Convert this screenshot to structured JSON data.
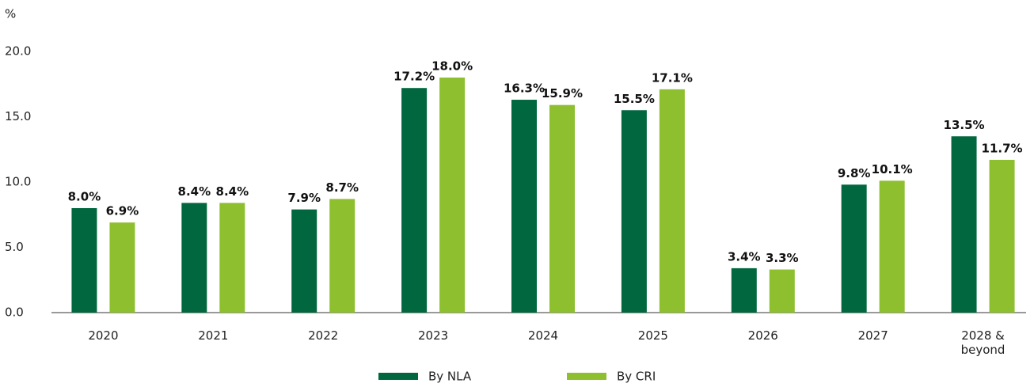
{
  "chart_data": {
    "type": "bar",
    "y_label": "%",
    "categories": [
      "2020",
      "2021",
      "2022",
      "2023",
      "2024",
      "2025",
      "2026",
      "2027",
      "2028 & beyond"
    ],
    "series": [
      {
        "name": "By NLA",
        "color": "#00673f",
        "values": [
          8.0,
          8.4,
          7.9,
          17.2,
          16.3,
          15.5,
          3.4,
          9.8,
          13.5
        ],
        "value_labels": [
          "8.0%",
          "8.4%",
          "7.9%",
          "17.2%",
          "16.3%",
          "15.5%",
          "3.4%",
          "9.8%",
          "13.5%"
        ]
      },
      {
        "name": "By CRI",
        "color": "#8dbf2e",
        "values": [
          6.9,
          8.4,
          8.7,
          18.0,
          15.9,
          17.1,
          3.3,
          10.1,
          11.7
        ],
        "value_labels": [
          "6.9%",
          "8.4%",
          "8.7%",
          "18.0%",
          "15.9%",
          "17.1%",
          "3.3%",
          "10.1%",
          "11.7%"
        ]
      }
    ],
    "ylim": [
      0,
      20
    ],
    "yticks": [
      {
        "value": 0,
        "label": "0.0"
      },
      {
        "value": 5,
        "label": "5.0"
      },
      {
        "value": 10,
        "label": "10.0"
      },
      {
        "value": 15,
        "label": "15.0"
      },
      {
        "value": 20,
        "label": "20.0"
      }
    ],
    "grid": false,
    "legend": "bottom"
  }
}
